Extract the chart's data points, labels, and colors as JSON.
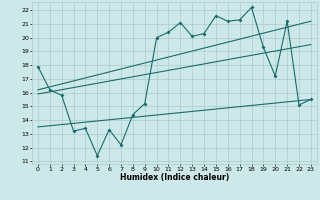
{
  "xlabel": "Humidex (Indice chaleur)",
  "background_color": "#cde8e8",
  "grid_color": "#aacccc",
  "line_color": "#1a6b6b",
  "xlim": [
    -0.5,
    23.5
  ],
  "ylim": [
    10.8,
    22.6
  ],
  "xticks": [
    0,
    1,
    2,
    3,
    4,
    5,
    6,
    7,
    8,
    9,
    10,
    11,
    12,
    13,
    14,
    15,
    16,
    17,
    18,
    19,
    20,
    21,
    22,
    23
  ],
  "yticks": [
    11,
    12,
    13,
    14,
    15,
    16,
    17,
    18,
    19,
    20,
    21,
    22
  ],
  "series1_x": [
    0,
    1,
    2,
    3,
    4,
    5,
    6,
    7,
    8,
    9,
    10,
    11,
    12,
    13,
    14,
    15,
    16,
    17,
    18,
    19,
    20,
    21,
    22,
    23
  ],
  "series1_y": [
    17.9,
    16.2,
    15.8,
    13.2,
    13.4,
    11.4,
    13.3,
    12.2,
    14.4,
    15.2,
    20.0,
    20.4,
    21.1,
    20.1,
    20.3,
    21.6,
    21.2,
    21.3,
    22.2,
    19.3,
    17.2,
    21.2,
    15.1,
    15.5
  ],
  "line1_x": [
    0,
    23
  ],
  "line1_y": [
    16.2,
    21.2
  ],
  "line2_x": [
    0,
    23
  ],
  "line2_y": [
    15.9,
    19.5
  ],
  "line3_x": [
    0,
    23
  ],
  "line3_y": [
    13.5,
    15.5
  ]
}
